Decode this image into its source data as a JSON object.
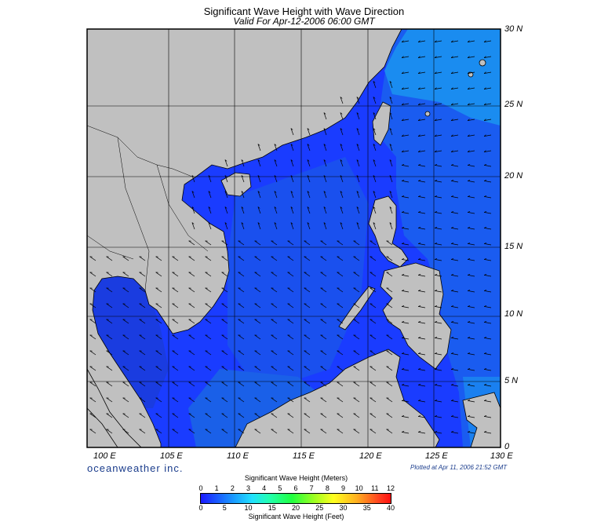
{
  "title": "Significant Wave Height with Wave Direction",
  "subtitle": "Valid For Apr-12-2006 06:00 GMT",
  "lat_labels": [
    "30 N",
    "25 N",
    "20 N",
    "15 N",
    "10 N",
    "5 N",
    "0"
  ],
  "lon_labels": [
    "100 E",
    "105 E",
    "110 E",
    "115 E",
    "120 E",
    "125 E",
    "130 E"
  ],
  "credit": "oceanweather inc.",
  "plotted": "Plotted at Apr 11, 2006 21:52 GMT",
  "legend": {
    "title_meters": "Significant Wave Height (Meters)",
    "title_feet": "Significant Wave Height (Feet)",
    "meters_ticks": [
      "0",
      "1",
      "2",
      "3",
      "4",
      "5",
      "6",
      "7",
      "8",
      "9",
      "10",
      "11",
      "12"
    ],
    "feet_ticks": [
      "0",
      "5",
      "10",
      "15",
      "20",
      "25",
      "30",
      "35",
      "40"
    ]
  },
  "colors": {
    "land": "#c0c0c0",
    "deep": "#1a3cff",
    "mid": "#1a64e8",
    "light": "#1a90f0",
    "nearshore": "#0c1a5a",
    "border": "#000000"
  },
  "map_bounds": {
    "lon_min": 99,
    "lon_max": 130,
    "lat_min": 0,
    "lat_max": 30
  }
}
